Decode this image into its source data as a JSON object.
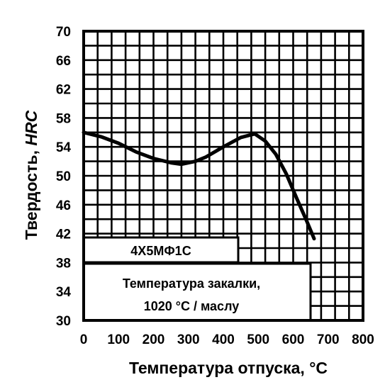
{
  "chart_data": {
    "type": "line",
    "xlabel": "Температура отпуска, °C",
    "ylabel_prefix": "Твердость, ",
    "ylabel_italic": "HRC",
    "xlim": [
      0,
      800
    ],
    "ylim": [
      30,
      70
    ],
    "x_ticks": [
      "0",
      "100",
      "200",
      "300",
      "400",
      "500",
      "600",
      "700",
      "800"
    ],
    "y_ticks": [
      "30",
      "34",
      "38",
      "42",
      "46",
      "50",
      "54",
      "58",
      "62",
      "66",
      "70"
    ],
    "grid": true,
    "series": [
      {
        "x": [
          0,
          50,
          100,
          150,
          200,
          250,
          280,
          320,
          350,
          400,
          450,
          490,
          520,
          550,
          580,
          610,
          640,
          660
        ],
        "y": [
          56,
          55.4,
          54.5,
          53.3,
          52.4,
          51.8,
          51.6,
          52.0,
          52.6,
          54.0,
          55.3,
          55.8,
          54.8,
          53.0,
          50.3,
          46.9,
          43.6,
          41.3
        ]
      }
    ],
    "annotations": {
      "steel_grade": "4Х5МФ1С",
      "quench_line1": "Температура закалки,",
      "quench_line2": "1020 °C / маслу"
    }
  }
}
